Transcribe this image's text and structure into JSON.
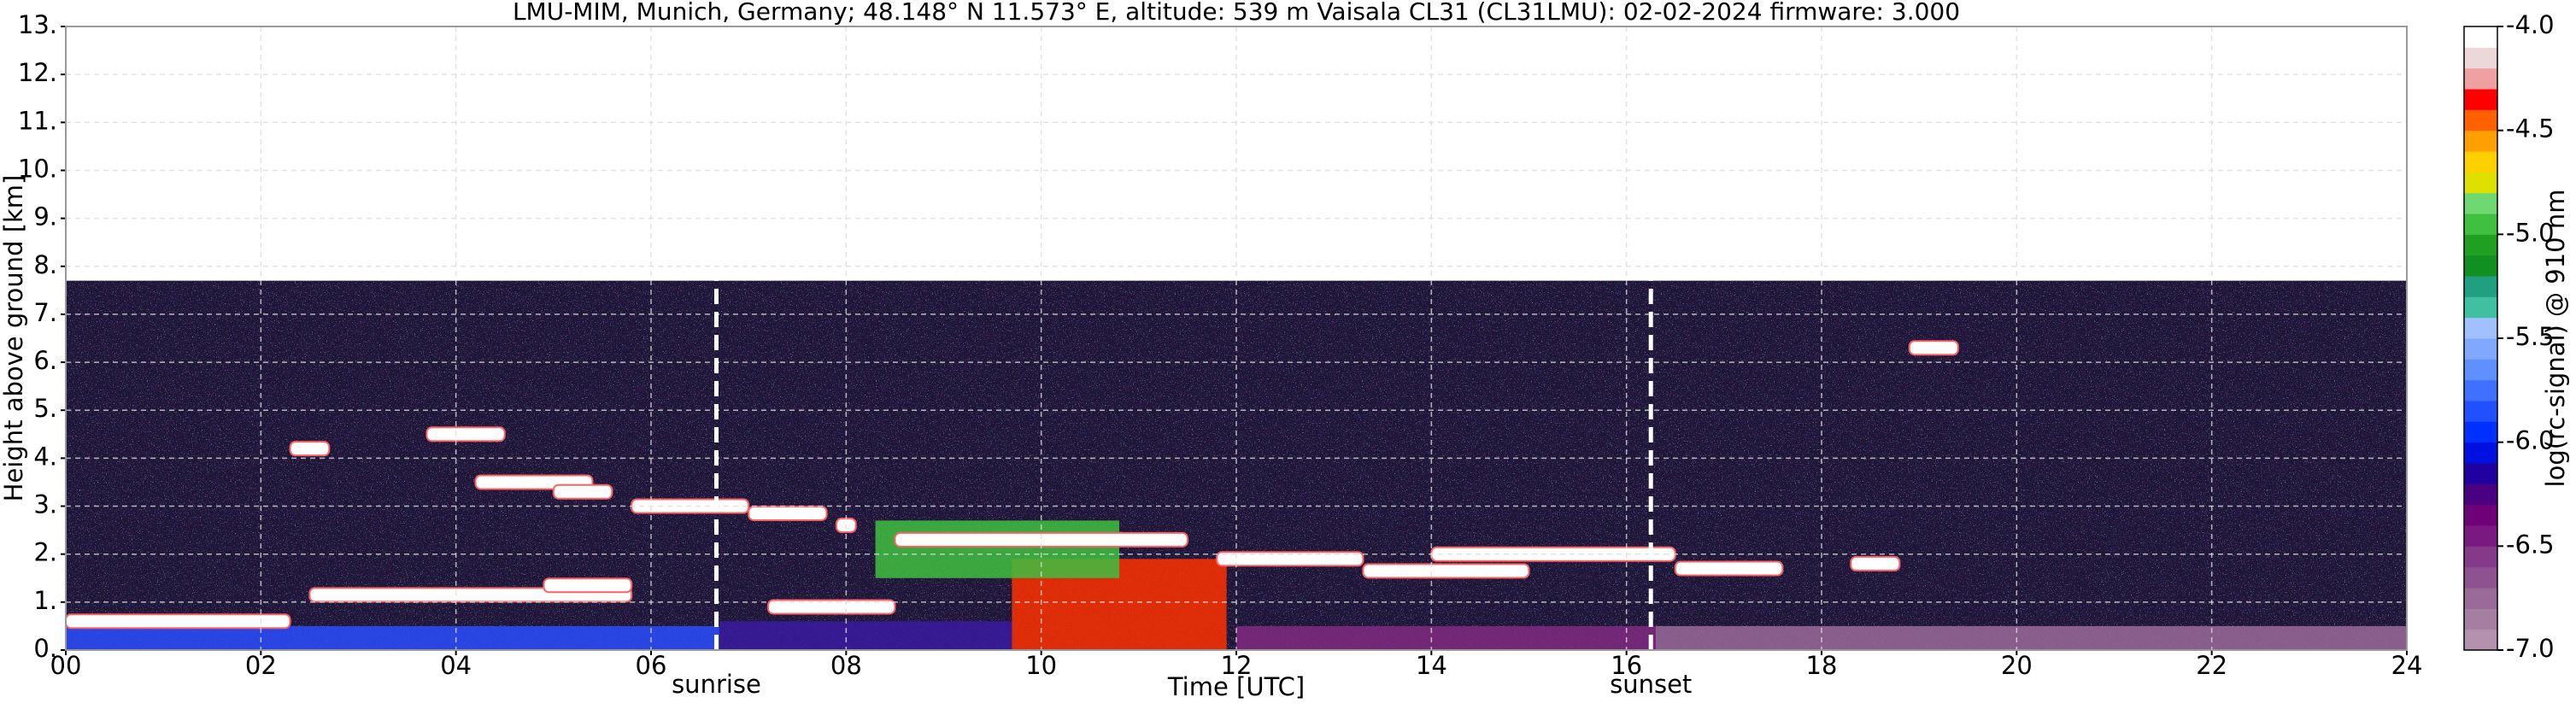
{
  "chart_data": {
    "type": "ceilometer",
    "title": "LMU-MIM, Munich, Germany; 48.148° N 11.573° E, altitude: 539 m    Vaisala CL31 (CL31LMU): 02-02-2024    firmware: 3.000",
    "x_label": "Time [UTC]",
    "y_label": "Height above ground [km]",
    "xlim": [
      0,
      24
    ],
    "ylim": [
      0,
      13
    ],
    "xticks": [
      {
        "value": 0,
        "label": "00"
      },
      {
        "value": 2,
        "label": "02"
      },
      {
        "value": 4,
        "label": "04"
      },
      {
        "value": 6,
        "label": "06"
      },
      {
        "value": 8,
        "label": "08"
      },
      10,
      12,
      14,
      16,
      18,
      20,
      22,
      24
    ],
    "yticks": [
      {
        "value": 0,
        "label": "0."
      },
      {
        "value": 1,
        "label": "1."
      },
      {
        "value": 2,
        "label": "2."
      },
      {
        "value": 3,
        "label": "3."
      },
      {
        "value": 4,
        "label": "4."
      },
      {
        "value": 5,
        "label": "5."
      },
      {
        "value": 6,
        "label": "6."
      },
      {
        "value": 7,
        "label": "7."
      },
      {
        "value": 8,
        "label": "8."
      },
      {
        "value": 9,
        "label": "9."
      },
      {
        "value": 10,
        "label": "10."
      },
      {
        "value": 11,
        "label": "11."
      },
      {
        "value": 12,
        "label": "12."
      },
      {
        "value": 13,
        "label": "13."
      }
    ],
    "grid": true,
    "signal_top": 7.7,
    "regions": [
      {
        "x0": 0,
        "x1": 6.7,
        "y0": 0,
        "y1": 0.5,
        "color": "#2a4cff"
      },
      {
        "x0": 6.7,
        "x1": 9.7,
        "y0": 0,
        "y1": 0.6,
        "color": "#3a1aa0"
      },
      {
        "x0": 9.7,
        "x1": 11.9,
        "y0": 0,
        "y1": 1.9,
        "color": "#ff3000"
      },
      {
        "x0": 8.3,
        "x1": 10.8,
        "y0": 1.5,
        "y1": 2.7,
        "color": "#40c040"
      },
      {
        "x0": 12,
        "x1": 16.3,
        "y0": 0,
        "y1": 0.5,
        "color": "#802a80"
      },
      {
        "x0": 16.3,
        "x1": 24,
        "y0": 0,
        "y1": 0.5,
        "color": "#9a6a9a"
      }
    ],
    "layers": [
      {
        "x0": 0,
        "x1": 2.3,
        "y": 0.6
      },
      {
        "x0": 2.3,
        "x1": 2.7,
        "y": 4.2
      },
      {
        "x0": 3.7,
        "x1": 4.5,
        "y": 4.5
      },
      {
        "x0": 4.2,
        "x1": 5.4,
        "y": 3.5
      },
      {
        "x0": 5.0,
        "x1": 5.6,
        "y": 3.3
      },
      {
        "x0": 5.8,
        "x1": 7.0,
        "y": 3.0
      },
      {
        "x0": 7.0,
        "x1": 7.8,
        "y": 2.85
      },
      {
        "x0": 7.9,
        "x1": 8.1,
        "y": 2.6
      },
      {
        "x0": 2.5,
        "x1": 5.8,
        "y": 1.15
      },
      {
        "x0": 4.9,
        "x1": 5.8,
        "y": 1.35
      },
      {
        "x0": 7.2,
        "x1": 8.5,
        "y": 0.9
      },
      {
        "x0": 8.5,
        "x1": 11.5,
        "y": 2.3
      },
      {
        "x0": 11.8,
        "x1": 13.3,
        "y": 1.9
      },
      {
        "x0": 13.3,
        "x1": 15.0,
        "y": 1.65
      },
      {
        "x0": 14.0,
        "x1": 16.5,
        "y": 2.0
      },
      {
        "x0": 16.5,
        "x1": 17.6,
        "y": 1.7
      },
      {
        "x0": 18.3,
        "x1": 18.8,
        "y": 1.8
      },
      {
        "x0": 18.9,
        "x1": 19.4,
        "y": 6.3
      }
    ],
    "annotations": [
      {
        "text": "sunrise",
        "x": 6.67
      },
      {
        "text": "sunset",
        "x": 16.25
      }
    ],
    "colorbar": {
      "label": "log(rc-signal) @ 910 nm",
      "clim": [
        -7,
        -4
      ],
      "ticks": [
        {
          "value": -7,
          "label": "-7.0"
        },
        -6.5,
        {
          "value": -6,
          "label": "-6.0"
        },
        -5.5,
        {
          "value": -5,
          "label": "-5.0"
        },
        -4.5,
        {
          "value": -4,
          "label": "-4.0"
        }
      ],
      "colors": [
        "#b491ae",
        "#a67ea2",
        "#9a6a98",
        "#8e5290",
        "#843a88",
        "#7a1a80",
        "#700078",
        "#4b0082",
        "#2000a0",
        "#0010e0",
        "#0030ff",
        "#2050ff",
        "#4070ff",
        "#6090ff",
        "#80a8ff",
        "#a0c0ff",
        "#40c0a0",
        "#20a080",
        "#109020",
        "#20a020",
        "#40c040",
        "#70d870",
        "#e0e000",
        "#ffd000",
        "#ffa000",
        "#ff6000",
        "#ff0000",
        "#f0a0a0",
        "#ecd8d8",
        "#ffffff"
      ]
    }
  }
}
